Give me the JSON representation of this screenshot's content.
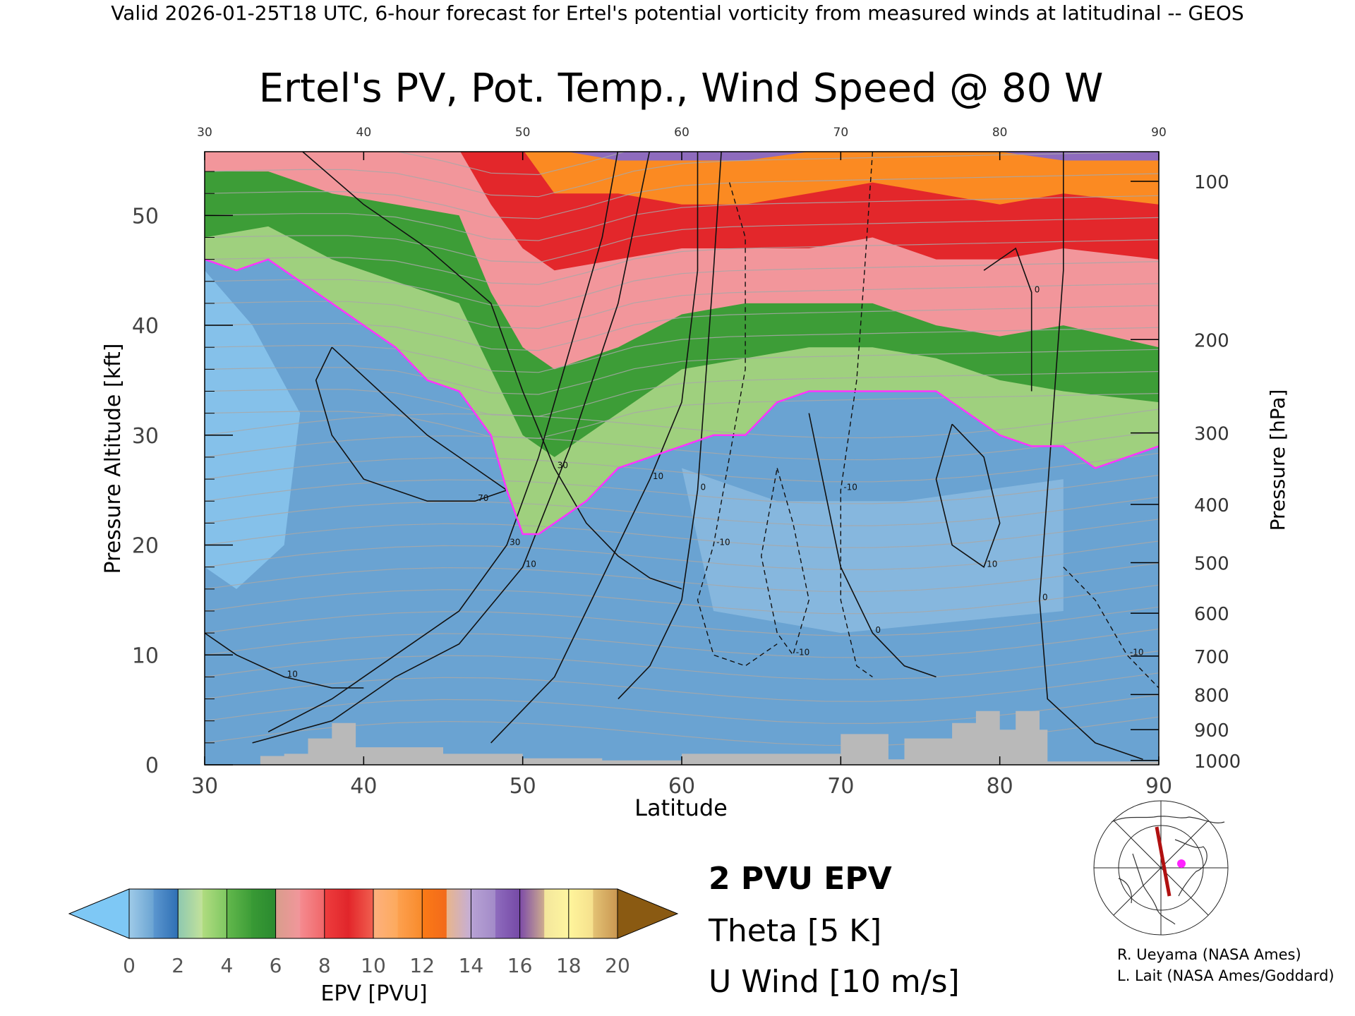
{
  "header": {
    "banner": "Valid 2026-01-25T18 UTC, 6-hour forecast for Ertel's potential vorticity from measured winds at latitudinal -- GEOS"
  },
  "chart_data": {
    "type": "heatmap",
    "title": "Ertel's PV, Pot. Temp., Wind Speed @ 80 W",
    "xlabel": "Latitude",
    "ylabel": "Pressure Altitude [kft]",
    "y2label": "Pressure [hPa]",
    "xlim": [
      30,
      90
    ],
    "ylim": [
      0,
      55.8
    ],
    "x_ticks": [
      30,
      40,
      50,
      60,
      70,
      80,
      90
    ],
    "y_ticks": [
      0,
      10,
      20,
      30,
      40,
      50
    ],
    "pressure_ticks": [
      {
        "hPa": "100",
        "kft": 53.1
      },
      {
        "hPa": "200",
        "kft": 38.7
      },
      {
        "hPa": "300",
        "kft": 30.2
      },
      {
        "hPa": "400",
        "kft": 23.7
      },
      {
        "hPa": "500",
        "kft": 18.4
      },
      {
        "hPa": "600",
        "kft": 13.8
      },
      {
        "hPa": "700",
        "kft": 9.9
      },
      {
        "hPa": "800",
        "kft": 6.4
      },
      {
        "hPa": "900",
        "kft": 3.2
      },
      {
        "hPa": "1000",
        "kft": 0.4
      }
    ],
    "tropopause_2pvu": [
      [
        30,
        46
      ],
      [
        32,
        45
      ],
      [
        34,
        46
      ],
      [
        36,
        44
      ],
      [
        38,
        42
      ],
      [
        40,
        40
      ],
      [
        42,
        38
      ],
      [
        44,
        35
      ],
      [
        46,
        34
      ],
      [
        48,
        30
      ],
      [
        49,
        25
      ],
      [
        50,
        21
      ],
      [
        51,
        21
      ],
      [
        52,
        22
      ],
      [
        54,
        24
      ],
      [
        56,
        27
      ],
      [
        58,
        28
      ],
      [
        60,
        29
      ],
      [
        62,
        30
      ],
      [
        64,
        30
      ],
      [
        66,
        33
      ],
      [
        68,
        34
      ],
      [
        70,
        34
      ],
      [
        72,
        34
      ],
      [
        74,
        34
      ],
      [
        76,
        34
      ],
      [
        78,
        32
      ],
      [
        80,
        30
      ],
      [
        82,
        29
      ],
      [
        84,
        29
      ],
      [
        86,
        27
      ],
      [
        88,
        28
      ],
      [
        90,
        29
      ]
    ],
    "pv_levels_kft": {
      "pv4": [
        [
          30,
          48
        ],
        [
          34,
          49
        ],
        [
          38,
          46
        ],
        [
          42,
          44
        ],
        [
          46,
          42
        ],
        [
          48,
          36
        ],
        [
          50,
          30
        ],
        [
          52,
          28
        ],
        [
          56,
          32
        ],
        [
          60,
          36
        ],
        [
          64,
          37
        ],
        [
          68,
          38
        ],
        [
          72,
          38
        ],
        [
          76,
          37
        ],
        [
          80,
          35
        ],
        [
          84,
          34
        ],
        [
          90,
          33
        ]
      ],
      "pv6": [
        [
          30,
          54
        ],
        [
          34,
          54
        ],
        [
          38,
          52
        ],
        [
          42,
          51
        ],
        [
          46,
          50
        ],
        [
          48,
          43
        ],
        [
          50,
          38
        ],
        [
          52,
          36
        ],
        [
          56,
          38
        ],
        [
          60,
          41
        ],
        [
          64,
          42
        ],
        [
          68,
          42
        ],
        [
          72,
          42
        ],
        [
          76,
          40
        ],
        [
          80,
          39
        ],
        [
          84,
          40
        ],
        [
          90,
          38
        ]
      ],
      "pv10": [
        [
          46,
          56
        ],
        [
          48,
          51
        ],
        [
          50,
          47
        ],
        [
          52,
          45
        ],
        [
          56,
          46
        ],
        [
          60,
          47
        ],
        [
          64,
          47
        ],
        [
          68,
          47
        ],
        [
          72,
          48
        ],
        [
          76,
          46
        ],
        [
          80,
          46
        ],
        [
          84,
          47
        ],
        [
          90,
          46
        ]
      ],
      "pv13": [
        [
          50,
          56
        ],
        [
          52,
          52
        ],
        [
          56,
          52
        ],
        [
          60,
          51
        ],
        [
          64,
          51
        ],
        [
          68,
          52
        ],
        [
          72,
          53
        ],
        [
          76,
          52
        ],
        [
          80,
          51
        ],
        [
          84,
          52
        ],
        [
          90,
          51
        ]
      ],
      "pv16": [
        [
          52,
          56
        ],
        [
          56,
          55
        ],
        [
          60,
          55
        ],
        [
          64,
          55
        ],
        [
          68,
          55.8
        ],
        [
          80,
          55.8
        ],
        [
          84,
          55
        ],
        [
          90,
          55
        ]
      ]
    },
    "wind_contours_ms": [
      {
        "label": "30",
        "points": [
          [
            36,
            56
          ],
          [
            40,
            51
          ],
          [
            44,
            47
          ],
          [
            48,
            42
          ],
          [
            50,
            34
          ],
          [
            52,
            27
          ],
          [
            54,
            22
          ],
          [
            56,
            19
          ],
          [
            58,
            17
          ],
          [
            60,
            16
          ]
        ]
      },
      {
        "label": "30",
        "points": [
          [
            34,
            3
          ],
          [
            38,
            6
          ],
          [
            42,
            10
          ],
          [
            46,
            14
          ],
          [
            49,
            20
          ],
          [
            51,
            28
          ],
          [
            53,
            38
          ],
          [
            55,
            48
          ],
          [
            56,
            56
          ]
        ]
      },
      {
        "label": "10",
        "points": [
          [
            33,
            2
          ],
          [
            38,
            4
          ],
          [
            42,
            8
          ],
          [
            46,
            11
          ],
          [
            50,
            18
          ],
          [
            53,
            29
          ],
          [
            56,
            42
          ],
          [
            58,
            56
          ]
        ]
      },
      {
        "label": "0",
        "points": [
          [
            56,
            6
          ],
          [
            58,
            9
          ],
          [
            60,
            15
          ],
          [
            61,
            25
          ],
          [
            61.5,
            35
          ],
          [
            62,
            45
          ],
          [
            62.5,
            56
          ]
        ]
      },
      {
        "label": "10",
        "points": [
          [
            48,
            2
          ],
          [
            52,
            8
          ],
          [
            54,
            14
          ],
          [
            56,
            20
          ],
          [
            58,
            26
          ],
          [
            60,
            33
          ],
          [
            61,
            45
          ],
          [
            61,
            56
          ]
        ]
      },
      {
        "label": "70",
        "points": [
          [
            38,
            38
          ],
          [
            41,
            34
          ],
          [
            44,
            30
          ],
          [
            47,
            27
          ],
          [
            49,
            25
          ],
          [
            47,
            24
          ],
          [
            44,
            24
          ],
          [
            40,
            26
          ],
          [
            38,
            30
          ],
          [
            37,
            35
          ],
          [
            38,
            38
          ]
        ]
      },
      {
        "label": "10",
        "points": [
          [
            30,
            12
          ],
          [
            32,
            10
          ],
          [
            35,
            8
          ],
          [
            38,
            7
          ],
          [
            40,
            7
          ]
        ]
      },
      {
        "label": "10",
        "points": [
          [
            77,
            31
          ],
          [
            79,
            28
          ],
          [
            80,
            22
          ],
          [
            79,
            18
          ],
          [
            77,
            20
          ],
          [
            76,
            26
          ],
          [
            77,
            31
          ]
        ]
      },
      {
        "label": "0",
        "points": [
          [
            84,
            56
          ],
          [
            84,
            45
          ],
          [
            83.5,
            35
          ],
          [
            83,
            25
          ],
          [
            82.5,
            15
          ],
          [
            83,
            6
          ],
          [
            86,
            2
          ],
          [
            89,
            0.5
          ]
        ]
      },
      {
        "label": "0",
        "points": [
          [
            68,
            32
          ],
          [
            69,
            25
          ],
          [
            70,
            18
          ],
          [
            72,
            12
          ],
          [
            74,
            9
          ],
          [
            76,
            8
          ]
        ]
      },
      {
        "label": "0",
        "points": [
          [
            79,
            45
          ],
          [
            81,
            47
          ],
          [
            82,
            43
          ],
          [
            82,
            34
          ]
        ]
      }
    ],
    "wind_contours_dashed": [
      {
        "label": "-10",
        "points": [
          [
            63,
            53
          ],
          [
            64,
            48
          ],
          [
            64,
            36
          ],
          [
            63,
            28
          ],
          [
            62,
            20
          ],
          [
            61,
            15
          ],
          [
            62,
            10
          ],
          [
            64,
            9
          ],
          [
            66,
            11
          ]
        ]
      },
      {
        "label": "-10",
        "points": [
          [
            72,
            55.8
          ],
          [
            71.5,
            45
          ],
          [
            71,
            35
          ],
          [
            70,
            25
          ],
          [
            70,
            15
          ],
          [
            71,
            9
          ],
          [
            72,
            8
          ]
        ]
      },
      {
        "label": "-10",
        "points": [
          [
            66,
            27
          ],
          [
            67,
            22
          ],
          [
            68,
            15
          ],
          [
            67,
            10
          ],
          [
            66,
            12
          ],
          [
            65,
            19
          ],
          [
            66,
            27
          ]
        ]
      },
      {
        "label": "-10",
        "points": [
          [
            84,
            18
          ],
          [
            86,
            15
          ],
          [
            88,
            10
          ],
          [
            90,
            7
          ]
        ]
      }
    ],
    "terrain_kft": [
      [
        33.5,
        0.8
      ],
      [
        35.0,
        1.0
      ],
      [
        36.5,
        2.4
      ],
      [
        38.0,
        3.8
      ],
      [
        39.5,
        1.6
      ],
      [
        42.0,
        1.6
      ],
      [
        45.0,
        1.0
      ],
      [
        47.5,
        1.0
      ],
      [
        50.0,
        0.6
      ],
      [
        55.0,
        0.4
      ],
      [
        60.0,
        1.0
      ],
      [
        65.0,
        1.0
      ],
      [
        67.0,
        1.0
      ],
      [
        70.0,
        2.8
      ],
      [
        72.0,
        2.8
      ],
      [
        73.0,
        0.5
      ],
      [
        74.0,
        2.4
      ],
      [
        76.0,
        2.4
      ],
      [
        77.0,
        3.8
      ],
      [
        78.5,
        4.9
      ],
      [
        80.0,
        3.2
      ],
      [
        81.0,
        4.9
      ],
      [
        82.5,
        3.2
      ],
      [
        83.0,
        0.3
      ],
      [
        90.0,
        0.3
      ]
    ],
    "colorbar": {
      "label": "EPV [PVU]",
      "min": 0,
      "max": 20,
      "tick_labels": [
        "0",
        "2",
        "4",
        "6",
        "8",
        "10",
        "12",
        "14",
        "16",
        "18",
        "20"
      ],
      "below_color": "#7ec8f5",
      "above_color": "#8a5a12",
      "segments": [
        {
          "from": 0,
          "to": 1,
          "colors": [
            "#9fcbe8",
            "#6aa3d2"
          ]
        },
        {
          "from": 1,
          "to": 2,
          "colors": [
            "#5b96cf",
            "#2e6fb4"
          ]
        },
        {
          "from": 2,
          "to": 3,
          "colors": [
            "#8ec8b0",
            "#c3e29a"
          ]
        },
        {
          "from": 3,
          "to": 4,
          "colors": [
            "#b0dc80",
            "#7ec761"
          ]
        },
        {
          "from": 4,
          "to": 5,
          "colors": [
            "#63b84d",
            "#3d9d37"
          ]
        },
        {
          "from": 5,
          "to": 6,
          "colors": [
            "#399a35",
            "#2a8a2f"
          ]
        },
        {
          "from": 6,
          "to": 7,
          "colors": [
            "#d89d8c",
            "#f2969b"
          ]
        },
        {
          "from": 7,
          "to": 8,
          "colors": [
            "#f58b90",
            "#f06668"
          ]
        },
        {
          "from": 8,
          "to": 9,
          "colors": [
            "#ee3d3e",
            "#e0252a"
          ]
        },
        {
          "from": 9,
          "to": 10,
          "colors": [
            "#e3272b",
            "#f06050"
          ]
        },
        {
          "from": 10,
          "to": 11,
          "colors": [
            "#fdb07e",
            "#fdaa5c"
          ]
        },
        {
          "from": 11,
          "to": 12,
          "colors": [
            "#fda14f",
            "#f88a2b"
          ]
        },
        {
          "from": 12,
          "to": 13,
          "colors": [
            "#fb7a16",
            "#f26a1b"
          ]
        },
        {
          "from": 13,
          "to": 14,
          "colors": [
            "#e8b58c",
            "#c4aed9"
          ]
        },
        {
          "from": 14,
          "to": 15,
          "colors": [
            "#b7a2d4",
            "#a28ac8"
          ]
        },
        {
          "from": 15,
          "to": 16,
          "colors": [
            "#8e6bbd",
            "#7549a6"
          ]
        },
        {
          "from": 16,
          "to": 17,
          "colors": [
            "#7d4ba8",
            "#cfae8e"
          ]
        },
        {
          "from": 17,
          "to": 18,
          "colors": [
            "#f3e69c",
            "#fff6a0"
          ]
        },
        {
          "from": 18,
          "to": 19,
          "colors": [
            "#fff59c",
            "#f5e08d"
          ]
        },
        {
          "from": 19,
          "to": 20,
          "colors": [
            "#e3c274",
            "#c99651"
          ]
        }
      ]
    },
    "series": [
      {
        "name": "2 PVU EPV",
        "color": "#ff33ff"
      },
      {
        "name": "Theta [5 K]",
        "color": "#b0b0b0"
      },
      {
        "name": "U Wind [10 m/s]",
        "color": "#000000"
      }
    ],
    "grid": false
  },
  "inset_map": {
    "description_icon": "polar-projection-map",
    "section_line_color": "#b01010",
    "marker_color": "#ff22ff"
  },
  "credits": {
    "line1": "R. Ueyama (NASA Ames)",
    "line2": "L. Lait (NASA Ames/Goddard)"
  }
}
